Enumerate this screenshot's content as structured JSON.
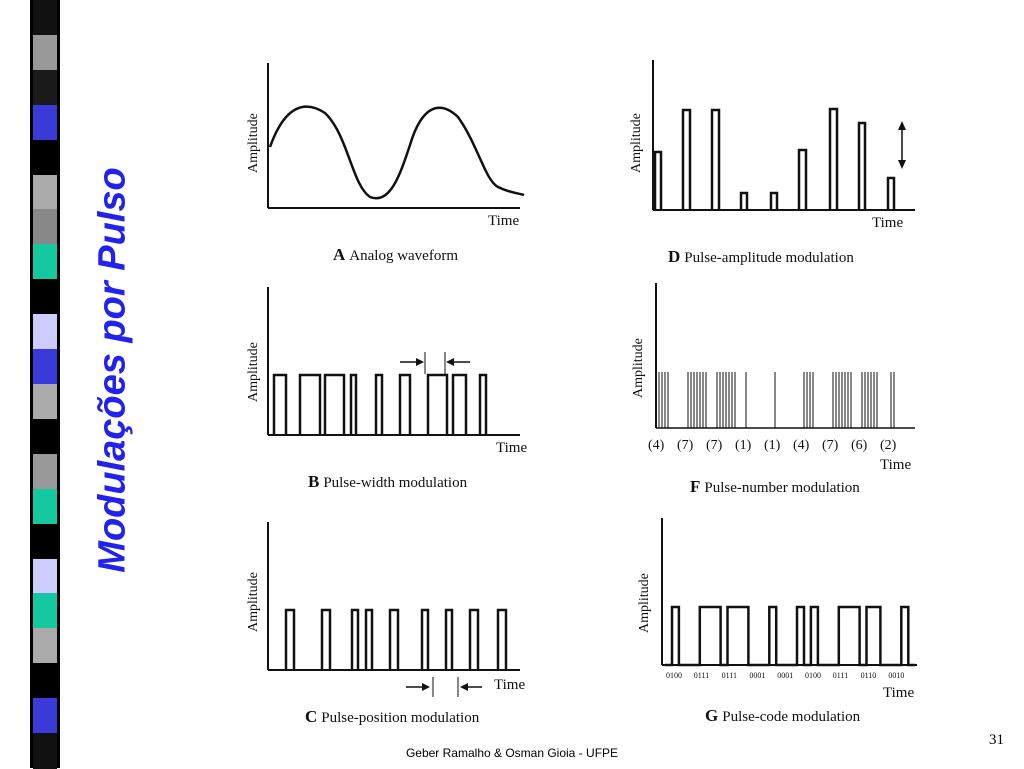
{
  "slide": {
    "title": "Modulações por Pulso",
    "footer": "Geber Ramalho & Osman Gioia - UFPE",
    "page_number": "31"
  },
  "colors": {
    "title": "#2222ee",
    "stripe": [
      "#111111",
      "#999999",
      "#1a1a1a",
      "#3a3ad8",
      "#000000",
      "#aaaaaa",
      "#888888",
      "#14c8a0",
      "#000000",
      "#ccccff",
      "#3a3ad8",
      "#aaaaaa",
      "#000000",
      "#999999",
      "#14c8a0",
      "#000000",
      "#ccccff",
      "#14c8a0",
      "#aaaaaa",
      "#000000",
      "#3a3ad8",
      "#111111"
    ]
  },
  "panels": {
    "a": {
      "ylabel": "Amplitude",
      "xlabel": "Time",
      "letter": "A",
      "caption": "Analog waveform"
    },
    "b": {
      "ylabel": "Amplitude",
      "xlabel": "Time",
      "letter": "B",
      "caption": "Pulse-width modulation"
    },
    "c": {
      "ylabel": "Amplitude",
      "xlabel": "Time",
      "letter": "C",
      "caption": "Pulse-position modulation"
    },
    "d": {
      "ylabel": "Amplitude",
      "xlabel": "Time",
      "letter": "D",
      "caption": "Pulse-amplitude modulation"
    },
    "f": {
      "ylabel": "Amplitude",
      "xlabel": "Time",
      "letter": "F",
      "caption": "Pulse-number modulation",
      "counts": [
        "(4)",
        "(7)",
        "(7)",
        "(1)",
        "(1)",
        "(4)",
        "(7)",
        "(6)",
        "(2)"
      ]
    },
    "g": {
      "ylabel": "Amplitude",
      "xlabel": "Time",
      "letter": "G",
      "caption": "Pulse-code modulation",
      "codes": [
        "0100",
        "0111",
        "0111",
        "0001",
        "0001",
        "0100",
        "0111",
        "0110",
        "0010"
      ]
    }
  }
}
